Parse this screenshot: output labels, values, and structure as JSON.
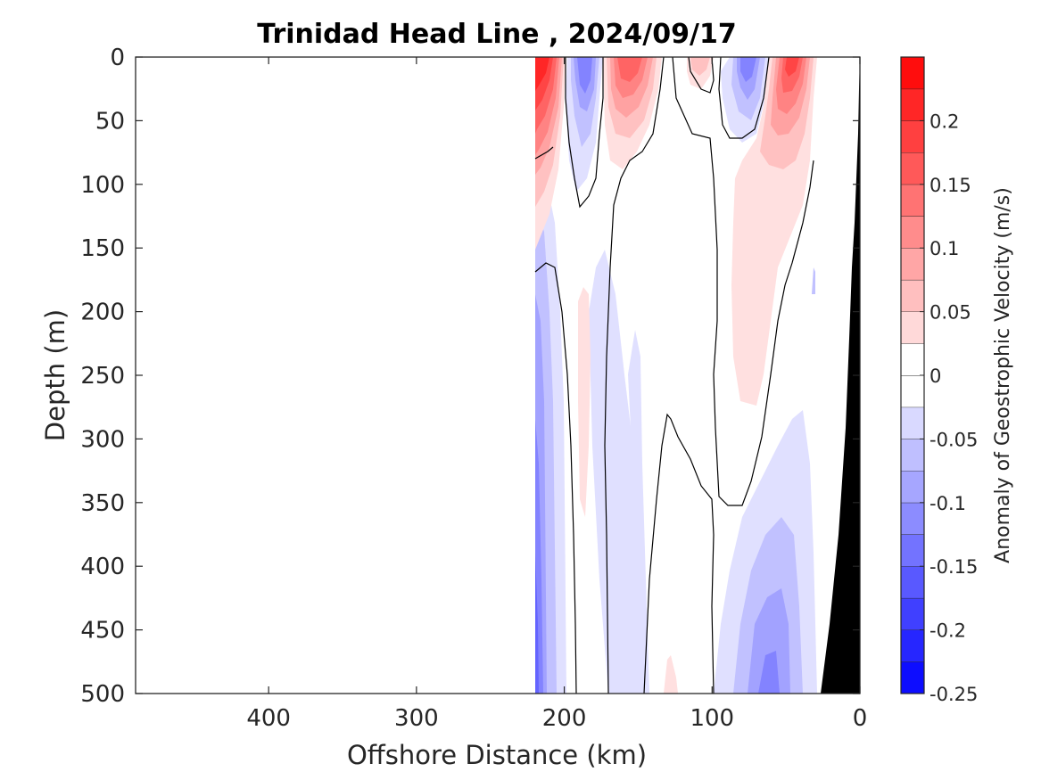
{
  "chart_data": {
    "type": "heatmap",
    "title": "Trinidad Head Line , 2024/09/17",
    "xlabel": "Offshore Distance (km)",
    "ylabel": "Depth (m)",
    "colorbar_label": "Anomaly of Geostrophic Velocity (m/s)",
    "xlim": [
      490,
      0
    ],
    "ylim": [
      500,
      0
    ],
    "x_reversed": true,
    "y_reversed": true,
    "xticks": [
      400,
      300,
      200,
      100,
      0
    ],
    "xtick_labels": [
      "400",
      "300",
      "200",
      "100",
      "0"
    ],
    "yticks": [
      0,
      50,
      100,
      150,
      200,
      250,
      300,
      350,
      400,
      450,
      500
    ],
    "ytick_labels": [
      "0",
      "50",
      "100",
      "150",
      "200",
      "250",
      "300",
      "350",
      "400",
      "450",
      "500"
    ],
    "colorbar_levels": [
      -0.25,
      -0.225,
      -0.2,
      -0.175,
      -0.15,
      -0.125,
      -0.1,
      -0.075,
      -0.05,
      -0.025,
      0,
      0.025,
      0.05,
      0.075,
      0.1,
      0.125,
      0.15,
      0.175,
      0.2,
      0.225,
      0.25
    ],
    "colorbar_ticks": [
      -0.25,
      -0.2,
      -0.15,
      -0.1,
      -0.05,
      0,
      0.05,
      0.1,
      0.15,
      0.2
    ],
    "colorbar_tick_labels": [
      "-0.25",
      "-0.2",
      "-0.15",
      "-0.1",
      "-0.05",
      "0",
      "0.05",
      "0.1",
      "0.15",
      "0.2"
    ],
    "colormap": {
      "negative": "#0000ff",
      "zero": "#ffffff",
      "positive": "#ff0000"
    },
    "bottom_color": "#000000",
    "data_extent_km": [
      0,
      220
    ],
    "features": [
      {
        "name": "offshore-edge-jet",
        "center_km": 212,
        "depth_range_m": [
          0,
          150
        ],
        "peak_velocity": 0.23
      },
      {
        "name": "southward-core-1",
        "center_km": 190,
        "depth_range_m": [
          0,
          110
        ],
        "peak_velocity": -0.13
      },
      {
        "name": "northward-core-1",
        "center_km": 158,
        "depth_range_m": [
          0,
          120
        ],
        "peak_velocity": 0.17
      },
      {
        "name": "northward-core-2",
        "center_km": 115,
        "depth_range_m": [
          0,
          35
        ],
        "peak_velocity": 0.05
      },
      {
        "name": "southward-core-2",
        "center_km": 82,
        "depth_range_m": [
          0,
          70
        ],
        "peak_velocity": -0.12
      },
      {
        "name": "northward-core-3",
        "center_km": 50,
        "depth_range_m": [
          0,
          270
        ],
        "peak_velocity": 0.18
      },
      {
        "name": "deep-southward-offshore",
        "center_km": 213,
        "depth_range_m": [
          200,
          500
        ],
        "peak_velocity": -0.22
      },
      {
        "name": "deep-southward-inshore",
        "center_km": 70,
        "depth_range_m": [
          300,
          500
        ],
        "peak_velocity": -0.12
      },
      {
        "name": "shelf-bottom",
        "x_range_km": [
          0,
          28
        ],
        "depth_range_m": [
          0,
          500
        ]
      }
    ]
  }
}
